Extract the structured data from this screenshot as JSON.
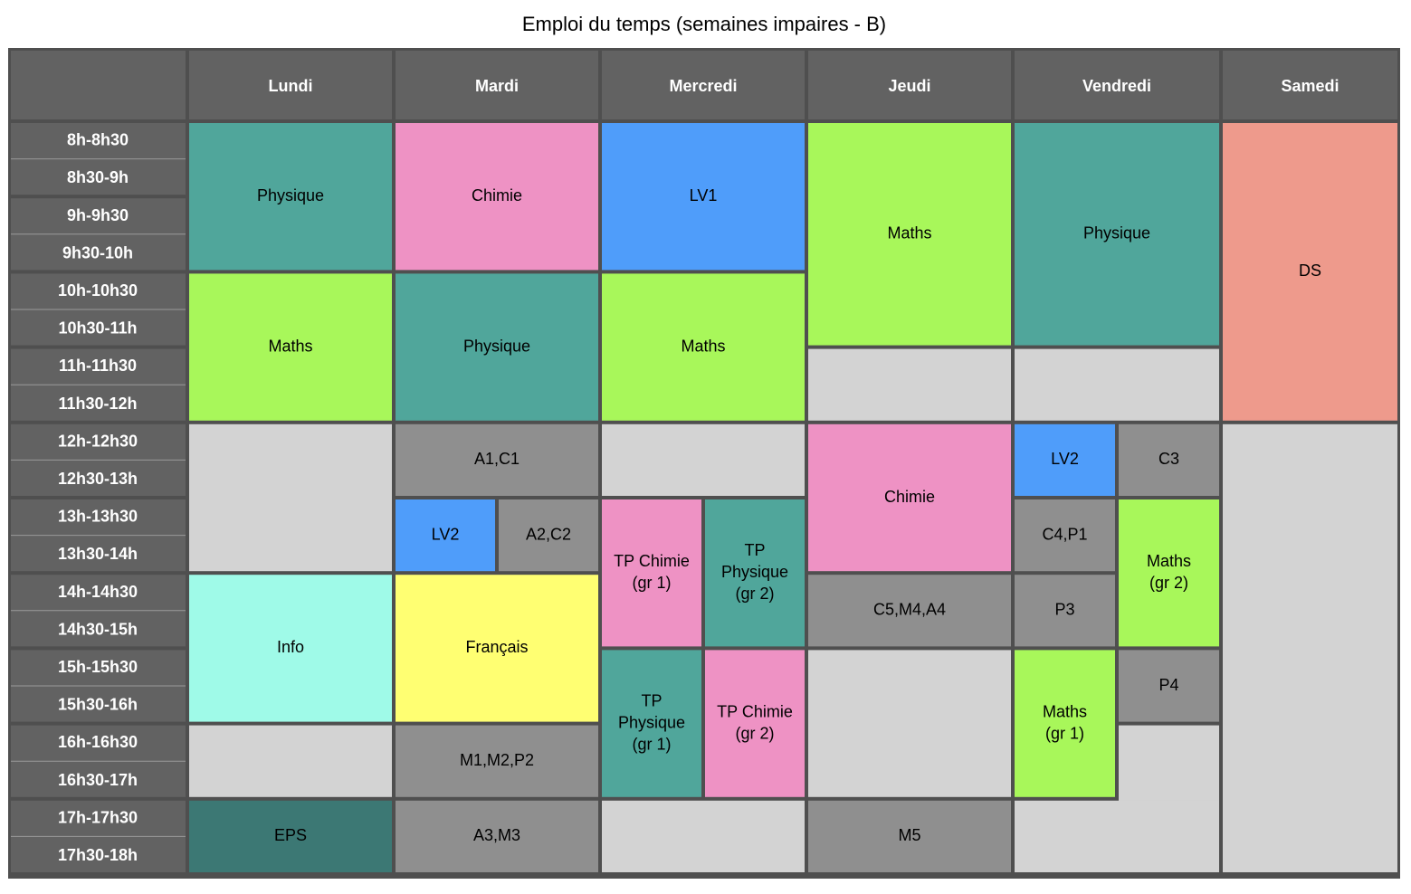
{
  "title": "Emploi du temps (semaines impaires - B)",
  "days": [
    "Lundi",
    "Mardi",
    "Mercredi",
    "Jeudi",
    "Vendredi",
    "Samedi"
  ],
  "times": [
    "8h-8h30",
    "8h30-9h",
    "9h-9h30",
    "9h30-10h",
    "10h-10h30",
    "10h30-11h",
    "11h-11h30",
    "11h30-12h",
    "12h-12h30",
    "12h30-13h",
    "13h-13h30",
    "13h30-14h",
    "14h-14h30",
    "14h30-15h",
    "15h-15h30",
    "15h30-16h",
    "16h-16h30",
    "16h30-17h",
    "17h-17h30",
    "17h30-18h"
  ],
  "events": [
    {
      "day": 0,
      "start": 0,
      "end": 4,
      "lines": [
        "Physique"
      ],
      "color": "#50a69b"
    },
    {
      "day": 0,
      "start": 4,
      "end": 8,
      "lines": [
        "Maths"
      ],
      "color": "#a8f75a"
    },
    {
      "day": 0,
      "start": 8,
      "end": 12,
      "lines": [],
      "color": "#d3d3d3"
    },
    {
      "day": 0,
      "start": 12,
      "end": 16,
      "lines": [
        "Info"
      ],
      "color": "#9ffae8"
    },
    {
      "day": 0,
      "start": 16,
      "end": 18,
      "lines": [],
      "color": "#d3d3d3"
    },
    {
      "day": 0,
      "start": 18,
      "end": 20,
      "lines": [
        "EPS"
      ],
      "color": "#3c7874"
    },
    {
      "day": 1,
      "start": 0,
      "end": 4,
      "lines": [
        "Chimie"
      ],
      "color": "#ee92c4"
    },
    {
      "day": 1,
      "start": 4,
      "end": 8,
      "lines": [
        "Physique"
      ],
      "color": "#50a69b"
    },
    {
      "day": 1,
      "start": 8,
      "end": 10,
      "lines": [
        "A1,C1"
      ],
      "color": "#8f8f8f"
    },
    {
      "day": 1,
      "start": 10,
      "end": 12,
      "sub": "left",
      "lines": [
        "LV2"
      ],
      "color": "#4f9dfa"
    },
    {
      "day": 1,
      "start": 10,
      "end": 12,
      "sub": "right",
      "lines": [
        "A2,C2"
      ],
      "color": "#8f8f8f"
    },
    {
      "day": 1,
      "start": 12,
      "end": 16,
      "lines": [
        "Français"
      ],
      "color": "#ffff72"
    },
    {
      "day": 1,
      "start": 16,
      "end": 18,
      "lines": [
        "M1,M2,P2"
      ],
      "color": "#8f8f8f"
    },
    {
      "day": 1,
      "start": 18,
      "end": 20,
      "lines": [
        "A3,M3"
      ],
      "color": "#8f8f8f"
    },
    {
      "day": 2,
      "start": 0,
      "end": 4,
      "lines": [
        "LV1"
      ],
      "color": "#4f9dfa"
    },
    {
      "day": 2,
      "start": 4,
      "end": 8,
      "lines": [
        "Maths"
      ],
      "color": "#a8f75a"
    },
    {
      "day": 2,
      "start": 8,
      "end": 10,
      "lines": [],
      "color": "#d3d3d3"
    },
    {
      "day": 2,
      "start": 10,
      "end": 14,
      "sub": "left",
      "lines": [
        "TP Chimie",
        "(gr 1)"
      ],
      "color": "#ee92c4"
    },
    {
      "day": 2,
      "start": 10,
      "end": 14,
      "sub": "right",
      "lines": [
        "TP",
        "Physique",
        "(gr 2)"
      ],
      "color": "#50a69b"
    },
    {
      "day": 2,
      "start": 14,
      "end": 18,
      "sub": "left",
      "lines": [
        "TP",
        "Physique",
        "(gr 1)"
      ],
      "color": "#50a69b"
    },
    {
      "day": 2,
      "start": 14,
      "end": 18,
      "sub": "right",
      "lines": [
        "TP Chimie",
        "(gr 2)"
      ],
      "color": "#ee92c4"
    },
    {
      "day": 2,
      "start": 18,
      "end": 20,
      "lines": [],
      "color": "#d3d3d3"
    },
    {
      "day": 3,
      "start": 0,
      "end": 6,
      "lines": [
        "Maths"
      ],
      "color": "#a8f75a"
    },
    {
      "day": 3,
      "start": 6,
      "end": 8,
      "lines": [],
      "color": "#d3d3d3"
    },
    {
      "day": 3,
      "start": 8,
      "end": 12,
      "lines": [
        "Chimie"
      ],
      "color": "#ee92c4"
    },
    {
      "day": 3,
      "start": 12,
      "end": 14,
      "lines": [
        "C5,M4,A4"
      ],
      "color": "#8f8f8f"
    },
    {
      "day": 3,
      "start": 14,
      "end": 18,
      "lines": [],
      "color": "#d3d3d3"
    },
    {
      "day": 3,
      "start": 18,
      "end": 20,
      "lines": [
        "M5"
      ],
      "color": "#8f8f8f"
    },
    {
      "day": 4,
      "start": 0,
      "end": 6,
      "lines": [
        "Physique"
      ],
      "color": "#50a69b"
    },
    {
      "day": 4,
      "start": 6,
      "end": 8,
      "lines": [],
      "color": "#d3d3d3"
    },
    {
      "day": 4,
      "start": 8,
      "end": 10,
      "sub": "left",
      "lines": [
        "LV2"
      ],
      "color": "#4f9dfa"
    },
    {
      "day": 4,
      "start": 8,
      "end": 10,
      "sub": "right",
      "lines": [
        "C3"
      ],
      "color": "#8f8f8f"
    },
    {
      "day": 4,
      "start": 10,
      "end": 12,
      "sub": "left",
      "lines": [
        "C4,P1"
      ],
      "color": "#8f8f8f"
    },
    {
      "day": 4,
      "start": 10,
      "end": 14,
      "sub": "right",
      "lines": [
        "Maths",
        "(gr 2)"
      ],
      "color": "#a8f75a"
    },
    {
      "day": 4,
      "start": 12,
      "end": 14,
      "sub": "left",
      "lines": [
        "P3"
      ],
      "color": "#8f8f8f"
    },
    {
      "day": 4,
      "start": 14,
      "end": 18,
      "sub": "left",
      "lines": [
        "Maths",
        "(gr 1)"
      ],
      "color": "#a8f75a"
    },
    {
      "day": 4,
      "start": 14,
      "end": 16,
      "sub": "right",
      "lines": [
        "P4"
      ],
      "color": "#8f8f8f"
    },
    {
      "day": 4,
      "start": 16,
      "end": 20,
      "sub": "right",
      "lines": [],
      "color": "#d3d3d3"
    },
    {
      "day": 4,
      "start": 18,
      "end": 20,
      "lines": [],
      "color": "#d3d3d3"
    },
    {
      "day": 5,
      "start": 0,
      "end": 8,
      "lines": [
        "DS"
      ],
      "color": "#ee9a8c"
    },
    {
      "day": 5,
      "start": 8,
      "end": 20,
      "lines": [],
      "color": "#d3d3d3"
    }
  ]
}
